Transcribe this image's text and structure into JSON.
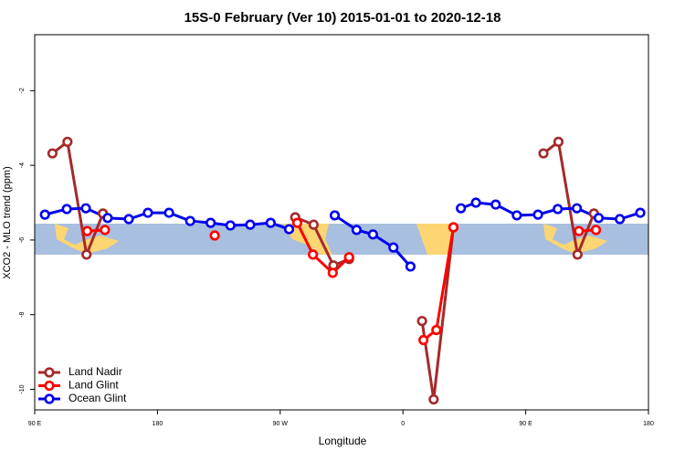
{
  "chart_data": {
    "type": "line",
    "title": "15S-0 February (Ver 10)   2015-01-01 to 2020-12-18",
    "x_label": "Longitude",
    "y_label": "XCO2 - MLO trend (ppm)",
    "xlim": [
      90,
      540
    ],
    "ylim": [
      -10.55,
      -0.5
    ],
    "xticks": [
      {
        "value": 90,
        "label": "90 E"
      },
      {
        "value": 180,
        "label": "180"
      },
      {
        "value": 270,
        "label": "90 W"
      },
      {
        "value": 360,
        "label": "0"
      },
      {
        "value": 450,
        "label": "90 E"
      },
      {
        "value": 540,
        "label": "180"
      }
    ],
    "yticks": [
      -2,
      -4,
      -6,
      -8,
      -10
    ],
    "legend": "bottomleft",
    "series": [
      {
        "name": "Land Nadir",
        "color": "#a52a2a",
        "x": [
          103,
          114,
          128,
          140,
          null,
          281,
          294.5,
          309,
          320.5,
          null,
          374,
          382.5,
          397,
          null,
          463,
          474,
          488,
          500
        ],
        "values": [
          -3.68,
          -3.37,
          -6.39,
          -5.29,
          null,
          -5.39,
          -5.59,
          -6.68,
          -6.51,
          null,
          -8.17,
          -10.27,
          -5.66,
          null,
          -3.68,
          -3.37,
          -6.39,
          -5.29
        ]
      },
      {
        "name": "Land Glint",
        "color": "#ff0000",
        "x": [
          128.5,
          141.5,
          null,
          222,
          null,
          282.5,
          294,
          308.5,
          320.5,
          null,
          375,
          384.5,
          397,
          null,
          489,
          501.5
        ],
        "values": [
          -5.76,
          -5.73,
          null,
          -5.88,
          null,
          -5.54,
          -6.39,
          -6.88,
          -6.46,
          null,
          -8.68,
          -8.41,
          -5.66,
          null,
          -5.76,
          -5.73
        ]
      },
      {
        "name": "Ocean Glint",
        "color": "#0000ee",
        "x": [
          97.5,
          113.5,
          127.5,
          143.5,
          159,
          173,
          188.5,
          204,
          219,
          233.5,
          248,
          263,
          276.5,
          null,
          310,
          326,
          338,
          353,
          365.5,
          null,
          402.5,
          413.5,
          428,
          443.5,
          459,
          473.5,
          487.5,
          503.5,
          519,
          534
        ],
        "values": [
          -5.32,
          -5.17,
          -5.15,
          -5.41,
          -5.44,
          -5.27,
          -5.27,
          -5.49,
          -5.54,
          -5.61,
          -5.59,
          -5.54,
          -5.71,
          null,
          -5.34,
          -5.73,
          -5.85,
          -6.2,
          -6.71,
          null,
          -5.15,
          -5.0,
          -5.05,
          -5.34,
          -5.32,
          -5.17,
          -5.15,
          -5.41,
          -5.44,
          -5.27
        ]
      }
    ]
  }
}
